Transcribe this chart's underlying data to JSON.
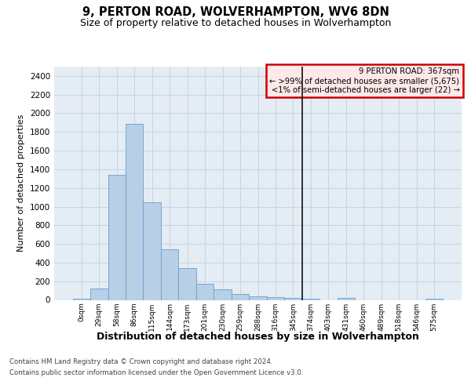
{
  "title": "9, PERTON ROAD, WOLVERHAMPTON, WV6 8DN",
  "subtitle": "Size of property relative to detached houses in Wolverhampton",
  "xlabel": "Distribution of detached houses by size in Wolverhampton",
  "ylabel": "Number of detached properties",
  "bar_labels": [
    "0sqm",
    "29sqm",
    "58sqm",
    "86sqm",
    "115sqm",
    "144sqm",
    "173sqm",
    "201sqm",
    "230sqm",
    "259sqm",
    "288sqm",
    "316sqm",
    "345sqm",
    "374sqm",
    "403sqm",
    "431sqm",
    "460sqm",
    "489sqm",
    "518sqm",
    "546sqm",
    "575sqm"
  ],
  "bar_values": [
    15,
    125,
    1340,
    1890,
    1045,
    540,
    340,
    170,
    110,
    65,
    40,
    30,
    25,
    15,
    0,
    25,
    0,
    0,
    0,
    0,
    15
  ],
  "bar_color": "#b8cfe8",
  "bar_edge_color": "#6aa0cc",
  "vline_x": 12.5,
  "vline_color": "#111111",
  "vline_lw": 1.2,
  "annotation_title": "9 PERTON ROAD: 367sqm",
  "annotation_line1": "← >99% of detached houses are smaller (5,675)",
  "annotation_line2": "<1% of semi-detached houses are larger (22) →",
  "annotation_facecolor": "#ffe8e8",
  "annotation_edgecolor": "#cc0000",
  "ylim_max": 2500,
  "yticks": [
    0,
    200,
    400,
    600,
    800,
    1000,
    1200,
    1400,
    1600,
    1800,
    2000,
    2200,
    2400
  ],
  "grid_color": "#c8d4e4",
  "ax_facecolor": "#e4ecf4",
  "title_fontsize": 10.5,
  "subtitle_fontsize": 9,
  "ylabel_fontsize": 8,
  "xlabel_fontsize": 9,
  "footer_line1": "Contains HM Land Registry data © Crown copyright and database right 2024.",
  "footer_line2": "Contains public sector information licensed under the Open Government Licence v3.0."
}
